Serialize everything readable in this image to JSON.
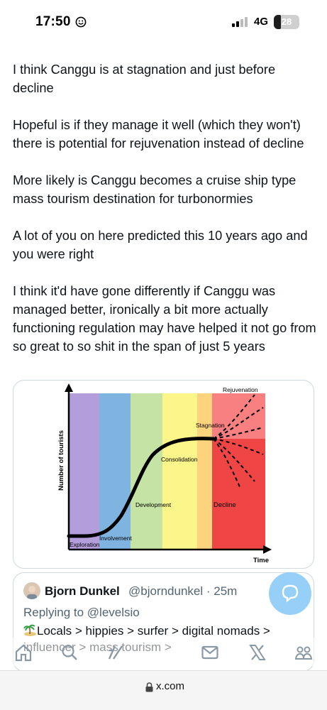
{
  "status_bar": {
    "time": "17:50",
    "network": "4G",
    "battery": "28",
    "battery_level": 0.28
  },
  "post": {
    "paragraphs": [
      "I think Canggu is at stagnation and just before decline",
      "Hopeful is if they manage it well (which they won't) there is potential for rejuvenation instead of decline",
      "More likely is Canggu becomes a cruise ship type mass tourism destination for turbonormies",
      "A lot of you on here predicted this 10 years ago and you were right",
      "I think it'd have gone differently if Canggu was managed better, ironically a bit more actually functioning regulation may have helped it not go from so great to so shit in the span of just 5 years"
    ]
  },
  "chart_data": {
    "type": "area",
    "ylabel": "Number of tourists",
    "xlabel": "Time",
    "stages": [
      "Exploration",
      "Involvement",
      "Development",
      "Consolidation",
      "Stagnation",
      "Decline",
      "Rejuvenation"
    ],
    "stage_colors": [
      "#b39ddb",
      "#7fb3e0",
      "#c5e3a5",
      "#fbf58a",
      "#fdd37e",
      "#f04545",
      "#f98080"
    ]
  },
  "quote": {
    "name": "Bjorn Dunkel",
    "handle": "@bjorndunkel · 25m",
    "replying_label": "Replying to",
    "replying_to": "@levelsio",
    "text": "Locals > hippies > surfer > digital nomads > influencer > mass tourism >"
  },
  "nav": {
    "icons": [
      "home-icon",
      "search-icon",
      "grok-icon",
      "messages-icon",
      "x-logo-icon",
      "communities-icon"
    ]
  },
  "url_bar": {
    "url": "x.com"
  }
}
